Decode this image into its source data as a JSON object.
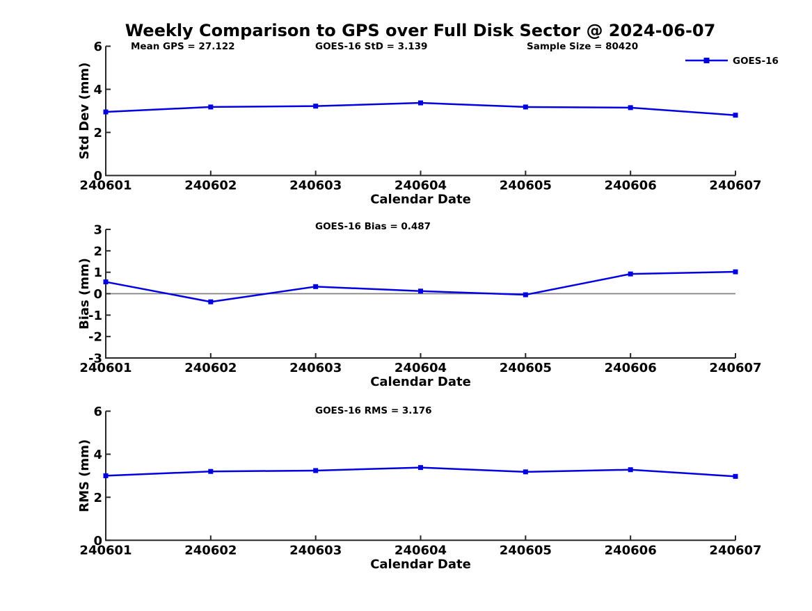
{
  "title": "Weekly Comparison to GPS over Full Disk Sector @ 2024-06-07",
  "legend": {
    "label": "GOES-16",
    "position": "top-right"
  },
  "colors": {
    "series": "#0000e0",
    "axis": "#262626",
    "zero_line": "#808080",
    "text": "#000000",
    "background": "#ffffff"
  },
  "chart_data": [
    {
      "type": "line",
      "name": "std-dev",
      "categories": [
        "240601",
        "240602",
        "240603",
        "240604",
        "240605",
        "240606",
        "240607"
      ],
      "series": [
        {
          "name": "GOES-16",
          "values": [
            2.95,
            3.18,
            3.22,
            3.37,
            3.18,
            3.15,
            2.8
          ]
        }
      ],
      "annotations": [
        "Mean GPS = 27.122",
        "GOES-16 StD = 3.139",
        "Sample Size = 80420"
      ],
      "xlabel": "Calendar Date",
      "ylabel": "Std Dev (mm)",
      "ylim": [
        0,
        6
      ],
      "yticks": [
        0,
        2,
        4,
        6
      ],
      "grid": false,
      "zero_line": false,
      "legend": true
    },
    {
      "type": "line",
      "name": "bias",
      "categories": [
        "240601",
        "240602",
        "240603",
        "240604",
        "240605",
        "240606",
        "240607"
      ],
      "series": [
        {
          "name": "GOES-16",
          "values": [
            0.55,
            -0.38,
            0.33,
            0.12,
            -0.05,
            0.92,
            1.02
          ]
        }
      ],
      "annotations": [
        "GOES-16 Bias  = 0.487"
      ],
      "xlabel": "Calendar Date",
      "ylabel": "Bias (mm)",
      "ylim": [
        -3,
        3
      ],
      "yticks": [
        -3,
        -2,
        -1,
        0,
        1,
        2,
        3
      ],
      "grid": false,
      "zero_line": true,
      "legend": false
    },
    {
      "type": "line",
      "name": "rms",
      "categories": [
        "240601",
        "240602",
        "240603",
        "240604",
        "240605",
        "240606",
        "240607"
      ],
      "series": [
        {
          "name": "GOES-16",
          "values": [
            3.0,
            3.2,
            3.24,
            3.38,
            3.18,
            3.28,
            2.97
          ]
        }
      ],
      "annotations": [
        "GOES-16 RMS = 3.176"
      ],
      "xlabel": "Calendar Date",
      "ylabel": "RMS (mm)",
      "ylim": [
        0,
        6
      ],
      "yticks": [
        0,
        2,
        4,
        6
      ],
      "grid": false,
      "zero_line": false,
      "legend": false
    }
  ]
}
